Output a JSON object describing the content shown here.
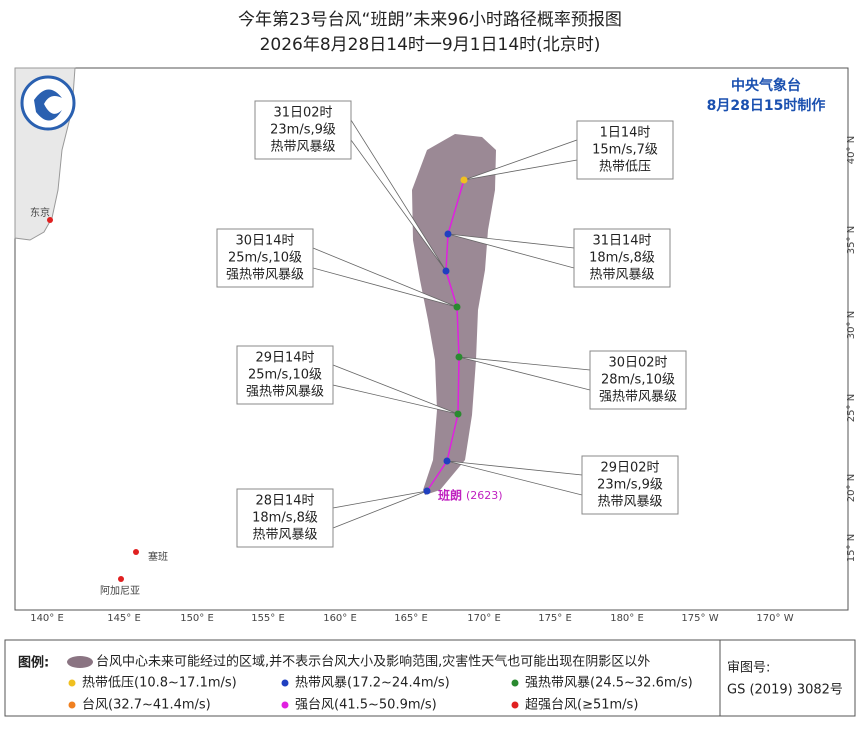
{
  "header": {
    "title": "今年第23号台风“班朗”未来96小时路径概率预报图",
    "subtitle": "2026年8月28日14时一9月1日14时(北京时)"
  },
  "agency": {
    "name": "中央气象台",
    "issued": "8月28日15时制作"
  },
  "map": {
    "x_labels": [
      "140° E",
      "145° E",
      "150° E",
      "155° E",
      "160° E",
      "165° E",
      "170° E",
      "175° E",
      "180° E",
      "175° W",
      "170° W"
    ],
    "y_labels": [
      "40° N",
      "35° N",
      "30° N",
      "25° N",
      "20° N",
      "15° N"
    ],
    "places": [
      {
        "label": "东京"
      },
      {
        "label": "塞班"
      },
      {
        "label": "阿加尼亚"
      }
    ],
    "typhoon_name": "班朗",
    "typhoon_id": "(2623)",
    "forecasts": [
      {
        "time": "28日14时",
        "wind": "18m/s,8级",
        "level": "热带风暴级"
      },
      {
        "time": "29日02时",
        "wind": "23m/s,9级",
        "level": "热带风暴级"
      },
      {
        "time": "29日14时",
        "wind": "25m/s,10级",
        "level": "强热带风暴级"
      },
      {
        "time": "30日02时",
        "wind": "28m/s,10级",
        "level": "强热带风暴级"
      },
      {
        "time": "30日14时",
        "wind": "25m/s,10级",
        "level": "强热带风暴级"
      },
      {
        "time": "31日02时",
        "wind": "23m/s,9级",
        "level": "热带风暴级"
      },
      {
        "time": "31日14时",
        "wind": "18m/s,8级",
        "level": "热带风暴级"
      },
      {
        "time": "1日14时",
        "wind": "15m/s,7级",
        "level": "热带低压"
      }
    ]
  },
  "legend": {
    "title": "图例:",
    "cone": "台风中心未来可能经过的区域,并不表示台风大小及影响范围,灾害性天气也可能出现在阴影区以外",
    "items": [
      {
        "label": "热带低压(10.8~17.1m/s)",
        "color": "#f0c020"
      },
      {
        "label": "热带风暴(17.2~24.4m/s)",
        "color": "#2040c0"
      },
      {
        "label": "强热带风暴(24.5~32.6m/s)",
        "color": "#2a8a30"
      },
      {
        "label": "台风(32.7~41.4m/s)",
        "color": "#f08020"
      },
      {
        "label": "强台风(41.5~50.9m/s)",
        "color": "#e020e0"
      },
      {
        "label": "超强台风(≥51m/s)",
        "color": "#e02020"
      }
    ]
  },
  "approval": {
    "label": "审图号:",
    "number": "GS (2019) 3082号"
  }
}
